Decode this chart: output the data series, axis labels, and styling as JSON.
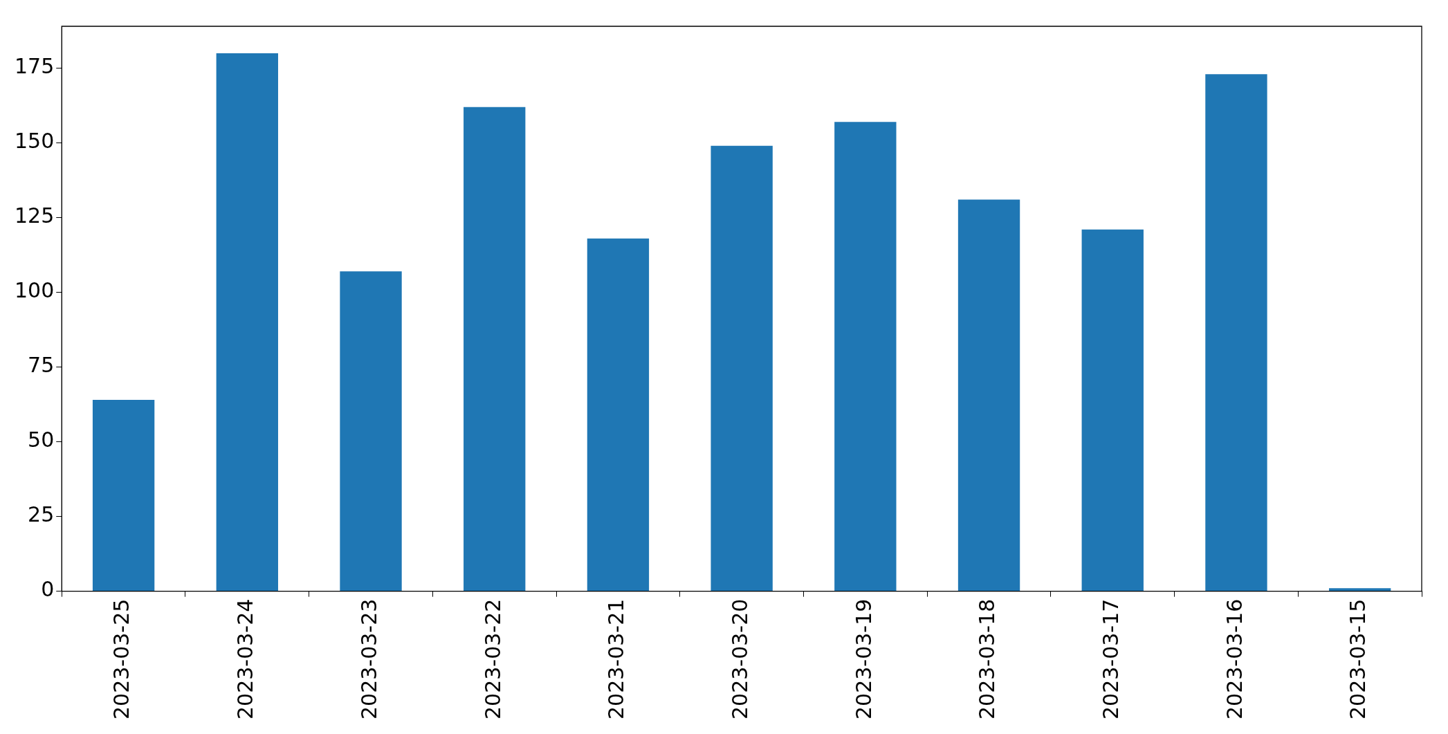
{
  "chart_data": {
    "type": "bar",
    "categories": [
      "2023-03-25",
      "2023-03-24",
      "2023-03-23",
      "2023-03-22",
      "2023-03-21",
      "2023-03-20",
      "2023-03-19",
      "2023-03-18",
      "2023-03-17",
      "2023-03-16",
      "2023-03-15"
    ],
    "values": [
      64,
      180,
      107,
      162,
      118,
      149,
      157,
      131,
      121,
      173,
      1
    ],
    "color": "#1f77b4",
    "ylim": [
      0,
      189
    ],
    "yticks": [
      0,
      25,
      50,
      75,
      100,
      125,
      150,
      175
    ],
    "grid": false,
    "legend": false
  }
}
